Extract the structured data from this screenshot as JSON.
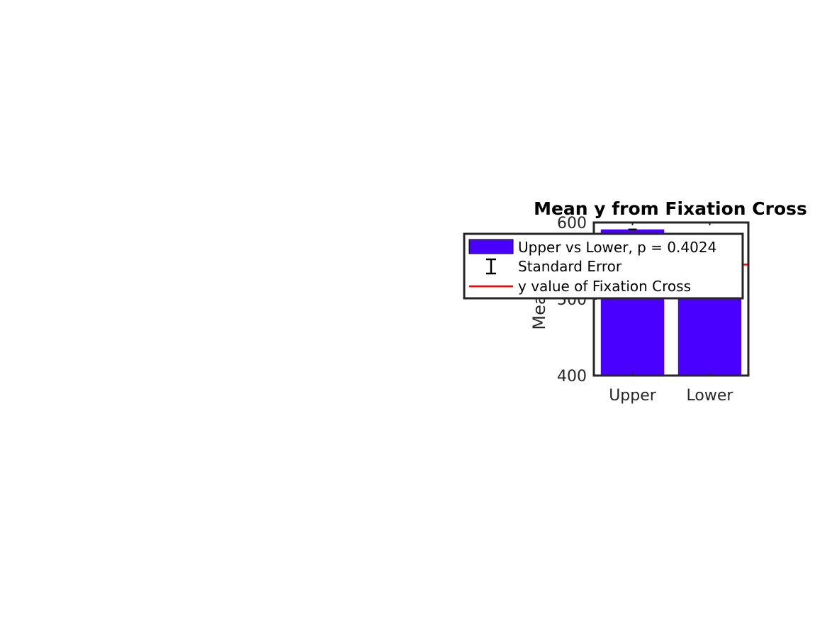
{
  "chart_data": {
    "type": "bar",
    "title": "Mean y from Fixation Cross",
    "xlabel": "",
    "ylabel": "Mean y",
    "categories": [
      "Upper",
      "Lower"
    ],
    "values": [
      591,
      547
    ],
    "errors": [
      0,
      0
    ],
    "ylim": [
      400,
      600
    ],
    "yticks": [
      400,
      500,
      600
    ],
    "reference_line": {
      "value": 545
    },
    "bar_color": "#4a00ff",
    "reference_color": "#ff0000",
    "grid": false,
    "legend": {
      "placement": "top-left",
      "entries": [
        {
          "label": "Upper vs Lower, p = 0.4024",
          "kind": "bar"
        },
        {
          "label": "Standard Error",
          "kind": "errorbar"
        },
        {
          "label": "y value of Fixation Cross",
          "kind": "line"
        }
      ]
    }
  }
}
